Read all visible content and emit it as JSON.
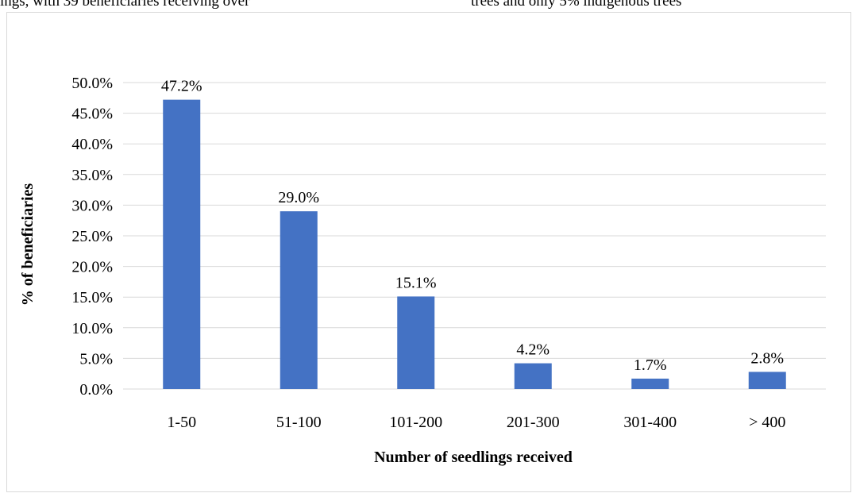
{
  "context_text": {
    "left": "ings,  with  39  beneficiaries  receiving  over",
    "right": "trees and only 5% indigenous trees"
  },
  "chart_data": {
    "type": "bar",
    "categories": [
      "1-50",
      "51-100",
      "101-200",
      "201-300",
      "301-400",
      "> 400"
    ],
    "values": [
      47.2,
      29.0,
      15.1,
      4.2,
      1.7,
      2.8
    ],
    "data_labels": [
      "47.2%",
      "29.0%",
      "15.1%",
      "4.2%",
      "1.7%",
      "2.8%"
    ],
    "title": "",
    "xlabel": "Number of seedlings received",
    "ylabel": "% of beneficiaries",
    "ylim": [
      0,
      50
    ],
    "yticks": [
      0,
      5,
      10,
      15,
      20,
      25,
      30,
      35,
      40,
      45,
      50
    ],
    "ytick_labels": [
      "0.0%",
      "5.0%",
      "10.0%",
      "15.0%",
      "20.0%",
      "25.0%",
      "30.0%",
      "35.0%",
      "40.0%",
      "45.0%",
      "50.0%"
    ],
    "grid": true,
    "legend": "none",
    "bar_color": "#4472C4",
    "grid_color": "#d9d9d9"
  }
}
